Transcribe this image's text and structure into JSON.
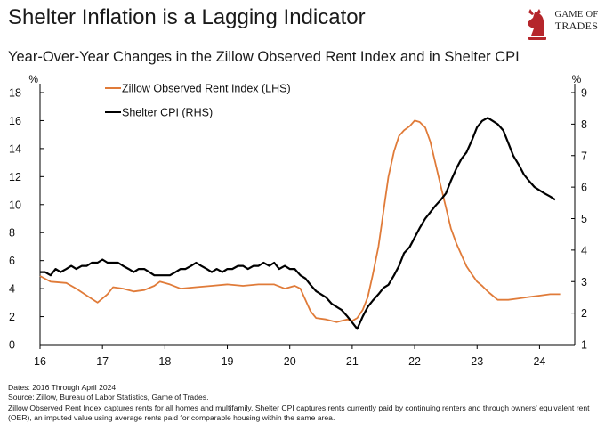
{
  "title": "Shelter Inflation is a Lagging Indicator",
  "subtitle": "Year-Over-Year Changes in the Zillow Observed Rent Index and in Shelter CPI",
  "logo": {
    "line1": "GAME OF",
    "line2": "TRADES",
    "icon": "knight-chess-icon",
    "color": "#b5262b"
  },
  "footer": {
    "dates": "Dates: 2016 Through April 2024.",
    "source": "Source: Zillow, Bureau of Labor Statistics, Game of Trades.",
    "note": "Zillow Observed Rent Index captures rents for all homes and multifamily. Shelter CPI captures rents currently paid by continuing renters and through owners' equivalent rent (OER), an imputed value using average rents paid for comparable housing within the same area."
  },
  "chart_data": {
    "type": "line",
    "left_axis": {
      "unit_label": "%",
      "min": 0,
      "max": 18,
      "ticks": [
        "0",
        "2",
        "4",
        "6",
        "8",
        "10",
        "12",
        "14",
        "16",
        "18"
      ]
    },
    "right_axis": {
      "unit_label": "%",
      "min": 1,
      "max": 9,
      "ticks": [
        "1",
        "2",
        "3",
        "4",
        "5",
        "6",
        "7",
        "8",
        "9"
      ]
    },
    "x_axis": {
      "min": 2016,
      "max": 2024.45,
      "ticks": [
        2016,
        2017,
        2018,
        2019,
        2020,
        2021,
        2022,
        2023,
        2024
      ],
      "tick_labels": [
        "16",
        "17",
        "18",
        "19",
        "20",
        "21",
        "22",
        "23",
        "24"
      ]
    },
    "series": [
      {
        "name": "Zillow Observed Rent Index (LHS)",
        "axis": "left",
        "color": "#e07b39",
        "points": [
          [
            2016.0,
            4.9
          ],
          [
            2016.17,
            4.5
          ],
          [
            2016.42,
            4.4
          ],
          [
            2016.58,
            4.0
          ],
          [
            2016.75,
            3.5
          ],
          [
            2016.92,
            3.0
          ],
          [
            2017.08,
            3.6
          ],
          [
            2017.17,
            4.1
          ],
          [
            2017.33,
            4.0
          ],
          [
            2017.5,
            3.8
          ],
          [
            2017.67,
            3.9
          ],
          [
            2017.83,
            4.2
          ],
          [
            2017.92,
            4.5
          ],
          [
            2018.08,
            4.3
          ],
          [
            2018.25,
            4.0
          ],
          [
            2018.5,
            4.1
          ],
          [
            2018.75,
            4.2
          ],
          [
            2019.0,
            4.3
          ],
          [
            2019.25,
            4.2
          ],
          [
            2019.5,
            4.3
          ],
          [
            2019.75,
            4.3
          ],
          [
            2019.92,
            4.0
          ],
          [
            2020.08,
            4.2
          ],
          [
            2020.17,
            4.0
          ],
          [
            2020.25,
            3.2
          ],
          [
            2020.33,
            2.4
          ],
          [
            2020.42,
            1.9
          ],
          [
            2020.58,
            1.8
          ],
          [
            2020.75,
            1.6
          ],
          [
            2020.92,
            1.8
          ],
          [
            2021.0,
            1.7
          ],
          [
            2021.08,
            1.9
          ],
          [
            2021.17,
            2.5
          ],
          [
            2021.25,
            3.4
          ],
          [
            2021.33,
            5.0
          ],
          [
            2021.42,
            7.0
          ],
          [
            2021.5,
            9.5
          ],
          [
            2021.58,
            12.0
          ],
          [
            2021.67,
            13.8
          ],
          [
            2021.75,
            14.9
          ],
          [
            2021.83,
            15.3
          ],
          [
            2021.92,
            15.6
          ],
          [
            2022.0,
            16.0
          ],
          [
            2022.08,
            15.9
          ],
          [
            2022.17,
            15.5
          ],
          [
            2022.25,
            14.5
          ],
          [
            2022.33,
            13.0
          ],
          [
            2022.42,
            11.3
          ],
          [
            2022.5,
            9.8
          ],
          [
            2022.58,
            8.3
          ],
          [
            2022.67,
            7.2
          ],
          [
            2022.75,
            6.4
          ],
          [
            2022.83,
            5.6
          ],
          [
            2022.92,
            5.0
          ],
          [
            2023.0,
            4.5
          ],
          [
            2023.08,
            4.2
          ],
          [
            2023.17,
            3.8
          ],
          [
            2023.25,
            3.5
          ],
          [
            2023.33,
            3.2
          ],
          [
            2023.5,
            3.2
          ],
          [
            2023.67,
            3.3
          ],
          [
            2023.83,
            3.4
          ],
          [
            2024.0,
            3.5
          ],
          [
            2024.17,
            3.6
          ],
          [
            2024.33,
            3.6
          ]
        ]
      },
      {
        "name": "Shelter CPI (RHS)",
        "axis": "right",
        "color": "#000000",
        "points": [
          [
            2016.0,
            3.3
          ],
          [
            2016.08,
            3.3
          ],
          [
            2016.17,
            3.2
          ],
          [
            2016.25,
            3.4
          ],
          [
            2016.33,
            3.3
          ],
          [
            2016.42,
            3.4
          ],
          [
            2016.5,
            3.5
          ],
          [
            2016.58,
            3.4
          ],
          [
            2016.67,
            3.5
          ],
          [
            2016.75,
            3.5
          ],
          [
            2016.83,
            3.6
          ],
          [
            2016.92,
            3.6
          ],
          [
            2017.0,
            3.7
          ],
          [
            2017.08,
            3.6
          ],
          [
            2017.17,
            3.6
          ],
          [
            2017.25,
            3.6
          ],
          [
            2017.33,
            3.5
          ],
          [
            2017.42,
            3.4
          ],
          [
            2017.5,
            3.3
          ],
          [
            2017.58,
            3.4
          ],
          [
            2017.67,
            3.4
          ],
          [
            2017.75,
            3.3
          ],
          [
            2017.83,
            3.2
          ],
          [
            2017.92,
            3.2
          ],
          [
            2018.0,
            3.2
          ],
          [
            2018.08,
            3.2
          ],
          [
            2018.17,
            3.3
          ],
          [
            2018.25,
            3.4
          ],
          [
            2018.33,
            3.4
          ],
          [
            2018.42,
            3.5
          ],
          [
            2018.5,
            3.6
          ],
          [
            2018.58,
            3.5
          ],
          [
            2018.67,
            3.4
          ],
          [
            2018.75,
            3.3
          ],
          [
            2018.83,
            3.4
          ],
          [
            2018.92,
            3.3
          ],
          [
            2019.0,
            3.4
          ],
          [
            2019.08,
            3.4
          ],
          [
            2019.17,
            3.5
          ],
          [
            2019.25,
            3.5
          ],
          [
            2019.33,
            3.4
          ],
          [
            2019.42,
            3.5
          ],
          [
            2019.5,
            3.5
          ],
          [
            2019.58,
            3.6
          ],
          [
            2019.67,
            3.5
          ],
          [
            2019.75,
            3.6
          ],
          [
            2019.83,
            3.4
          ],
          [
            2019.92,
            3.5
          ],
          [
            2020.0,
            3.4
          ],
          [
            2020.08,
            3.4
          ],
          [
            2020.17,
            3.2
          ],
          [
            2020.25,
            3.1
          ],
          [
            2020.33,
            2.9
          ],
          [
            2020.42,
            2.7
          ],
          [
            2020.5,
            2.6
          ],
          [
            2020.58,
            2.5
          ],
          [
            2020.67,
            2.3
          ],
          [
            2020.75,
            2.2
          ],
          [
            2020.83,
            2.1
          ],
          [
            2020.92,
            1.9
          ],
          [
            2021.0,
            1.7
          ],
          [
            2021.08,
            1.5
          ],
          [
            2021.17,
            1.9
          ],
          [
            2021.25,
            2.2
          ],
          [
            2021.33,
            2.4
          ],
          [
            2021.42,
            2.6
          ],
          [
            2021.5,
            2.8
          ],
          [
            2021.58,
            2.9
          ],
          [
            2021.67,
            3.2
          ],
          [
            2021.75,
            3.5
          ],
          [
            2021.83,
            3.9
          ],
          [
            2021.92,
            4.1
          ],
          [
            2022.0,
            4.4
          ],
          [
            2022.08,
            4.7
          ],
          [
            2022.17,
            5.0
          ],
          [
            2022.25,
            5.2
          ],
          [
            2022.33,
            5.4
          ],
          [
            2022.42,
            5.6
          ],
          [
            2022.5,
            5.8
          ],
          [
            2022.58,
            6.2
          ],
          [
            2022.67,
            6.6
          ],
          [
            2022.75,
            6.9
          ],
          [
            2022.83,
            7.1
          ],
          [
            2022.92,
            7.5
          ],
          [
            2023.0,
            7.9
          ],
          [
            2023.08,
            8.1
          ],
          [
            2023.17,
            8.2
          ],
          [
            2023.25,
            8.1
          ],
          [
            2023.33,
            8.0
          ],
          [
            2023.42,
            7.8
          ],
          [
            2023.5,
            7.4
          ],
          [
            2023.58,
            7.0
          ],
          [
            2023.67,
            6.7
          ],
          [
            2023.75,
            6.4
          ],
          [
            2023.83,
            6.2
          ],
          [
            2023.92,
            6.0
          ],
          [
            2024.0,
            5.9
          ],
          [
            2024.08,
            5.8
          ],
          [
            2024.17,
            5.7
          ],
          [
            2024.25,
            5.6
          ]
        ]
      }
    ],
    "legend_position": "top-left",
    "grid": false
  }
}
